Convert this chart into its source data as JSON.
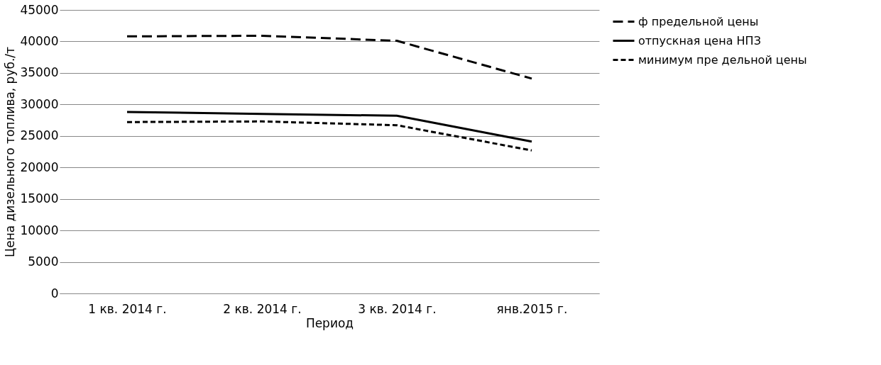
{
  "chart_data": {
    "type": "line",
    "xlabel": "Период",
    "ylabel": "Цена дизельного топлива, руб./т",
    "categories": [
      "1 кв. 2014 г.",
      "2 кв. 2014 г.",
      "3 кв. 2014 г.",
      "янв.2015 г."
    ],
    "series": [
      {
        "name": "ф предельной цены",
        "color": "#000000",
        "line_style": "dashed",
        "values": [
          40800,
          40900,
          40100,
          34100
        ]
      },
      {
        "name": "отпускная цена НПЗ",
        "color": "#000000",
        "line_style": "solid",
        "values": [
          28800,
          28500,
          28200,
          24100
        ]
      },
      {
        "name": "минимум пре дельной цены",
        "color": "#000000",
        "line_style": "dotted",
        "values": [
          27200,
          27300,
          26700,
          22700
        ]
      }
    ],
    "ylim": [
      0,
      45000
    ],
    "yticks": [
      0,
      5000,
      10000,
      15000,
      20000,
      25000,
      30000,
      35000,
      40000,
      45000
    ],
    "grid": "y",
    "legend": "right",
    "marker": "none"
  }
}
